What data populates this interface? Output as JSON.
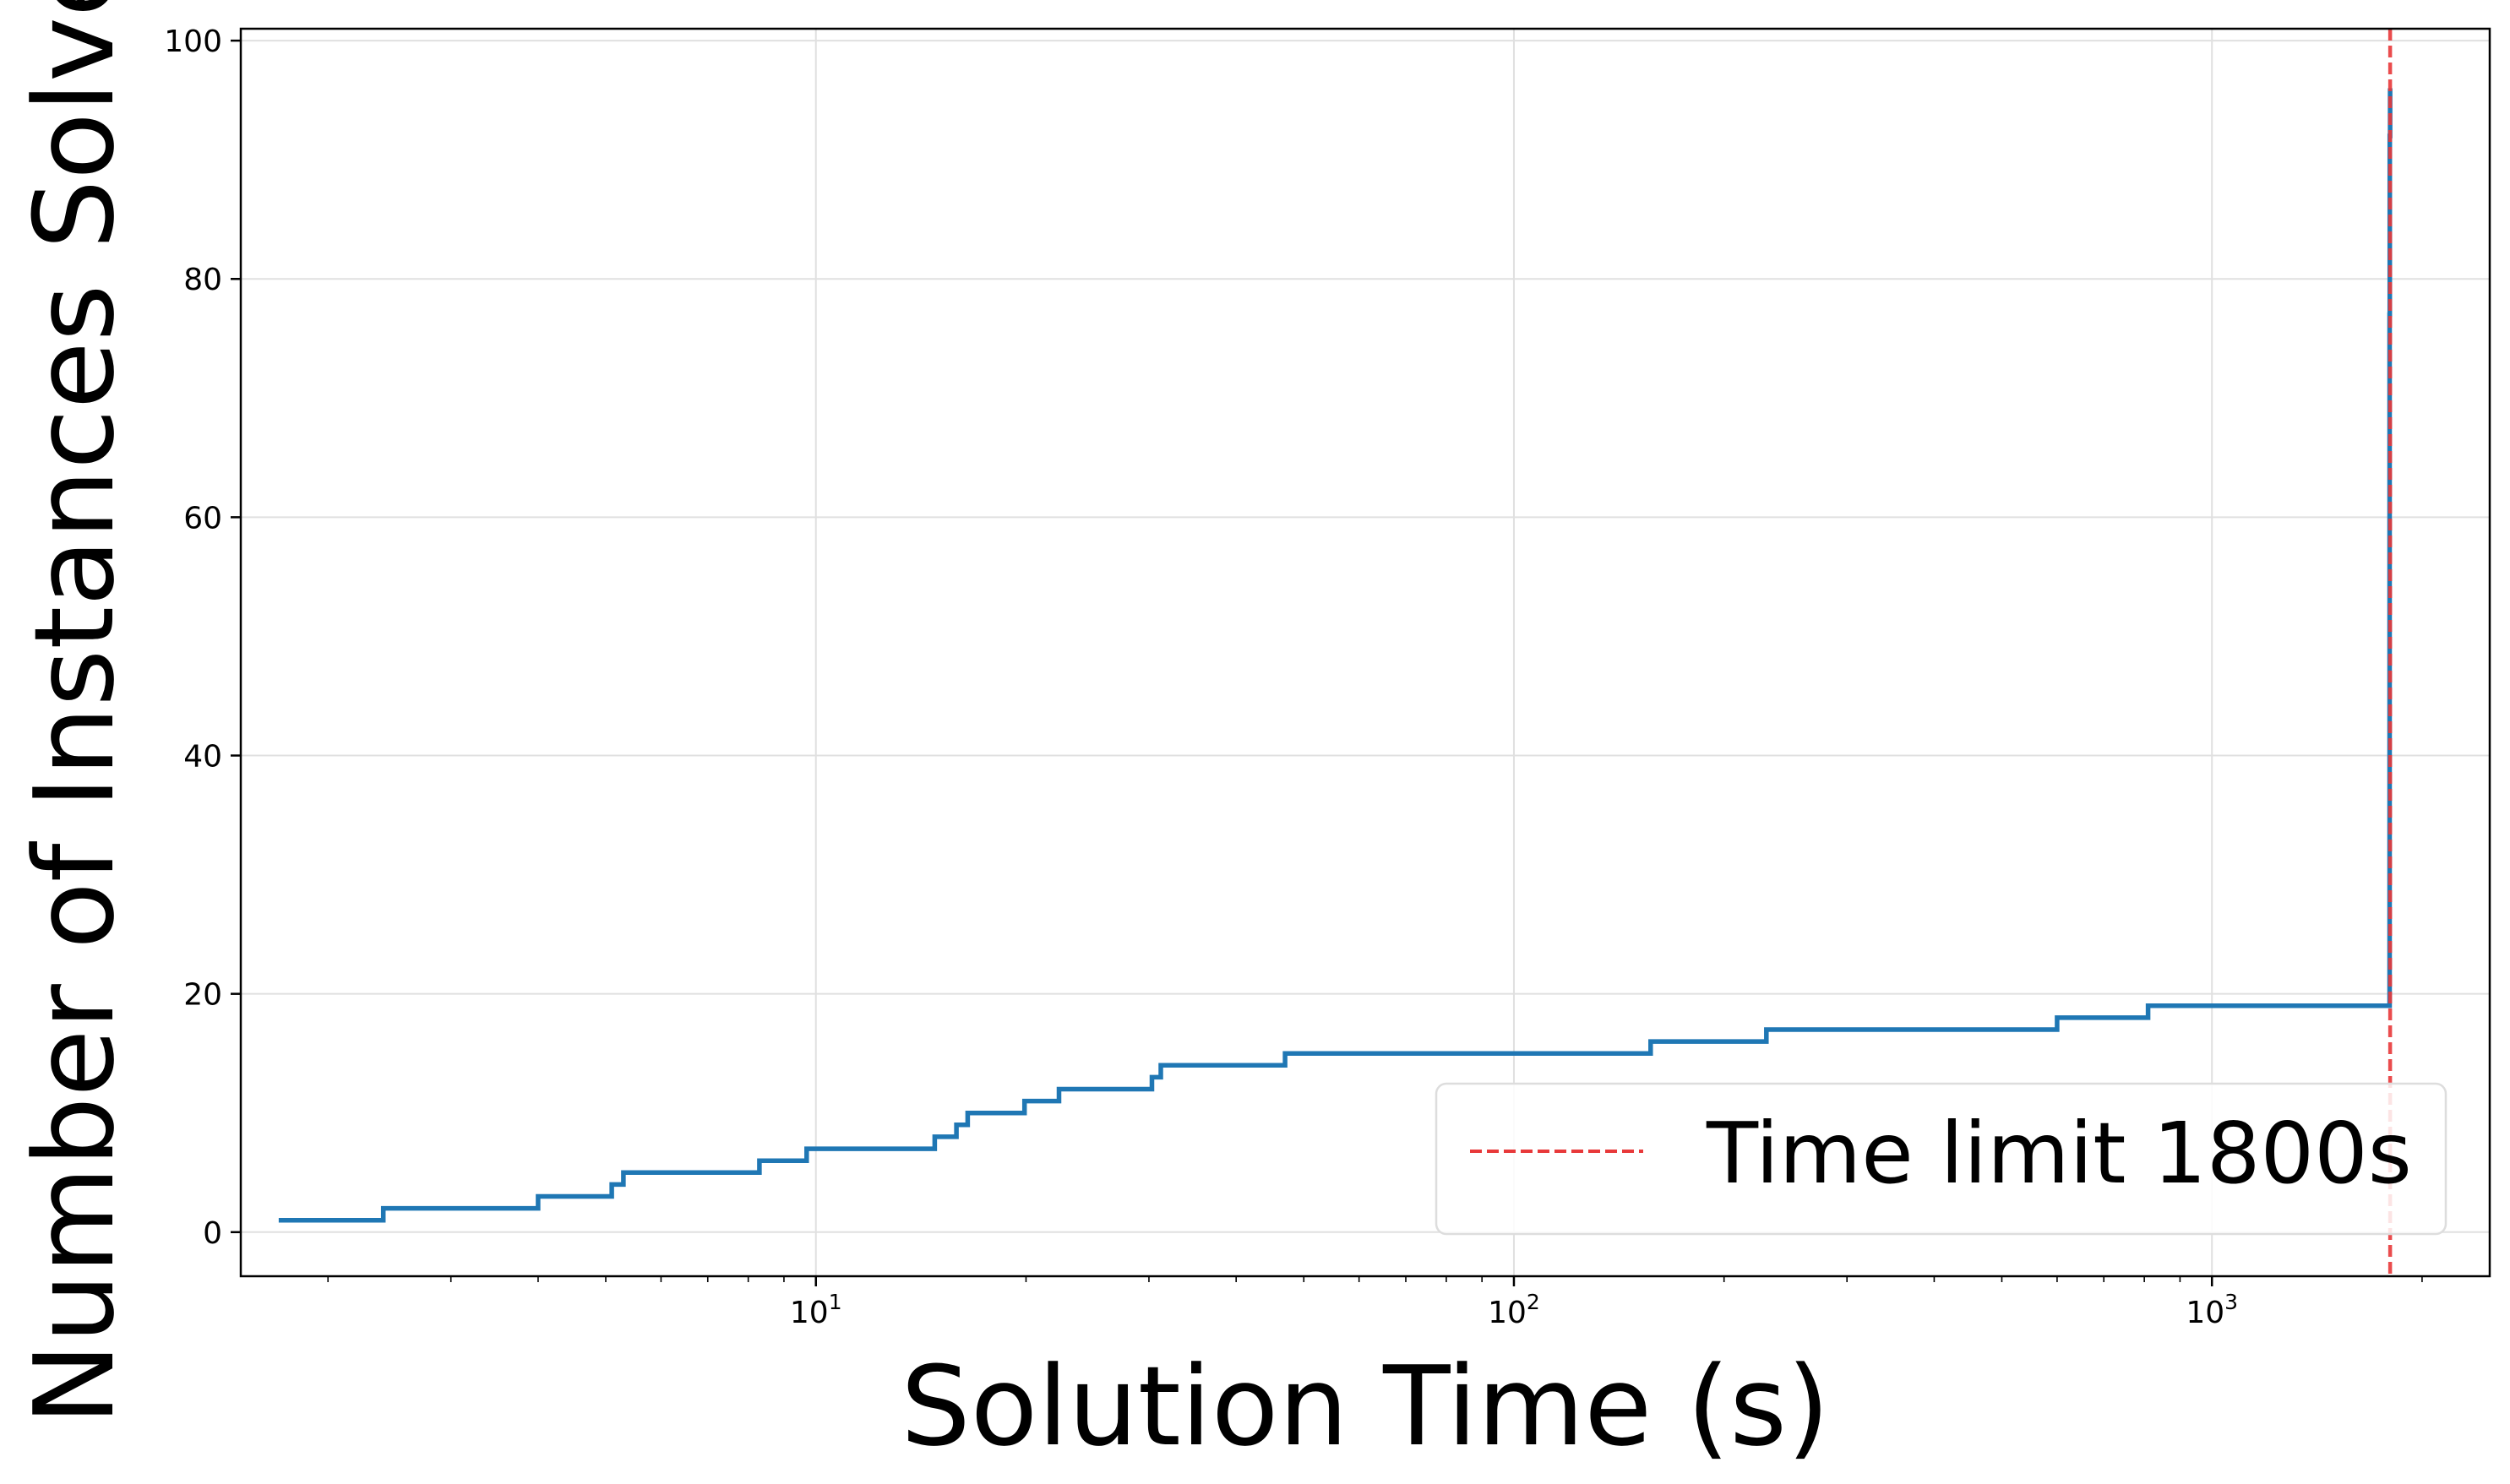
{
  "chart_data": {
    "type": "line",
    "xlabel": "Solution Time (s)",
    "ylabel": "Number of Instances Solved",
    "xscale": "log",
    "xlim": [
      1.5,
      2500
    ],
    "ylim": [
      -3.7,
      101
    ],
    "grid": true,
    "legend_position": "lower-right",
    "y_ticks": [
      0,
      20,
      40,
      60,
      80,
      100
    ],
    "x_ticks": [
      {
        "value": 10,
        "base": "10",
        "exp": "1"
      },
      {
        "value": 100,
        "base": "10",
        "exp": "2"
      },
      {
        "value": 1000,
        "base": "10",
        "exp": "3"
      }
    ],
    "series": [
      {
        "color": "#1f77b4",
        "step": "post",
        "points": [
          [
            1.7,
            1
          ],
          [
            2.4,
            2
          ],
          [
            4.0,
            3
          ],
          [
            5.1,
            4
          ],
          [
            5.3,
            5
          ],
          [
            8.3,
            6
          ],
          [
            9.7,
            7
          ],
          [
            14.8,
            8
          ],
          [
            15.9,
            9
          ],
          [
            16.5,
            10
          ],
          [
            19.9,
            11
          ],
          [
            22.3,
            12
          ],
          [
            30.3,
            13
          ],
          [
            31.2,
            14
          ],
          [
            47.0,
            15
          ],
          [
            157,
            16
          ],
          [
            230,
            17
          ],
          [
            600,
            18
          ],
          [
            810,
            19
          ],
          [
            1796,
            19
          ],
          [
            1797,
            77
          ],
          [
            1798,
            92
          ],
          [
            1800,
            96
          ]
        ]
      }
    ],
    "reference_lines": [
      {
        "orientation": "vertical",
        "x": 1800,
        "color": "#e8393a",
        "style": "dashed",
        "label": "Time limit 1800s"
      }
    ]
  }
}
